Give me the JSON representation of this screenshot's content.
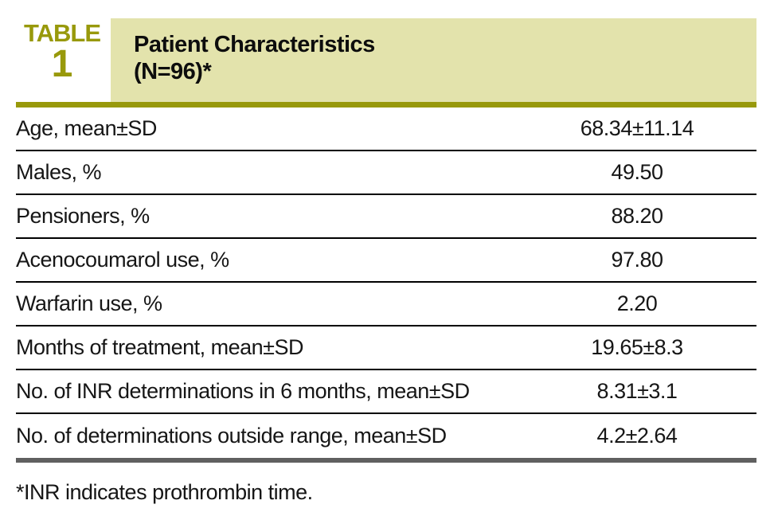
{
  "table": {
    "label": "TABLE",
    "number": "1",
    "title_line1": "Patient Characteristics",
    "title_line2": "(N=96)*",
    "rows": [
      {
        "label": "Age, mean±SD",
        "value": "68.34±11.14"
      },
      {
        "label": "Males, %",
        "value": "49.50"
      },
      {
        "label": "Pensioners, %",
        "value": "88.20"
      },
      {
        "label": "Acenocoumarol use, %",
        "value": "97.80"
      },
      {
        "label": "Warfarin use, %",
        "value": "2.20"
      },
      {
        "label": "Months of treatment, mean±SD",
        "value": "19.65±8.3"
      },
      {
        "label": "No. of INR determinations in 6 months, mean±SD",
        "value": "8.31±3.1"
      },
      {
        "label": "No. of determinations outside range, mean±SD",
        "value": "4.2±2.64"
      }
    ],
    "footnote": "*INR indicates prothrombin time.",
    "colors": {
      "olive": "#98990b",
      "header_bg": "#e3e3ac",
      "rule_gray": "#606060"
    }
  }
}
